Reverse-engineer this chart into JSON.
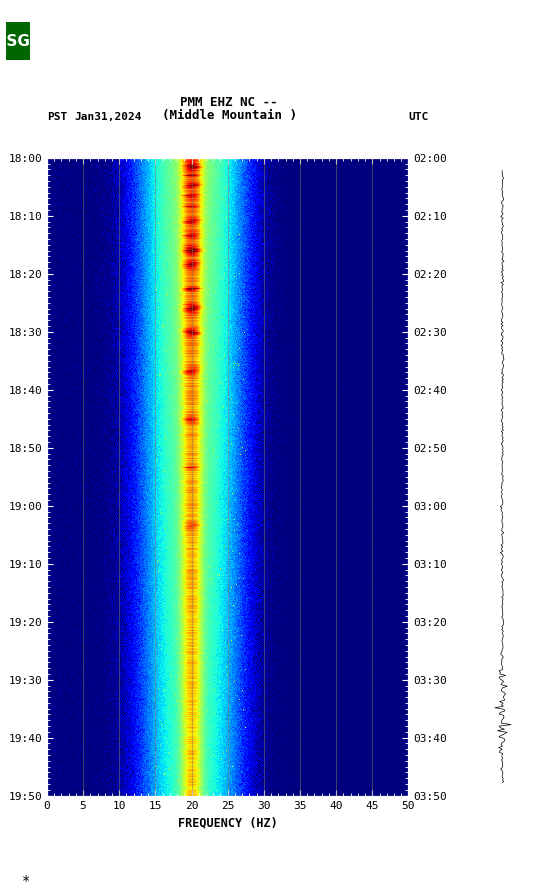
{
  "title_line1": "PMM EHZ NC --",
  "title_line2": "(Middle Mountain )",
  "left_label_pst": "PST",
  "left_label_date": "Jan31,2024",
  "right_label": "UTC",
  "freq_min": 0,
  "freq_max": 50,
  "xlabel": "FREQUENCY (HZ)",
  "pst_ticks": [
    "18:00",
    "18:10",
    "18:20",
    "18:30",
    "18:40",
    "18:50",
    "19:00",
    "19:10",
    "19:20",
    "19:30",
    "19:40",
    "19:50"
  ],
  "utc_ticks": [
    "02:00",
    "02:10",
    "02:20",
    "02:30",
    "02:40",
    "02:50",
    "03:00",
    "03:10",
    "03:20",
    "03:30",
    "03:40",
    "03:50"
  ],
  "freq_ticks": [
    0,
    5,
    10,
    15,
    20,
    25,
    30,
    35,
    40,
    45,
    50
  ],
  "vert_grid_freqs": [
    5,
    10,
    15,
    20,
    25,
    30,
    35,
    40,
    45
  ],
  "bg_color": "#000080",
  "usgs_green": "#006600",
  "colormap": "jet",
  "peak_freq": 20.0,
  "peak_sigma_narrow": 0.8,
  "peak_sigma_wide": 3.5
}
